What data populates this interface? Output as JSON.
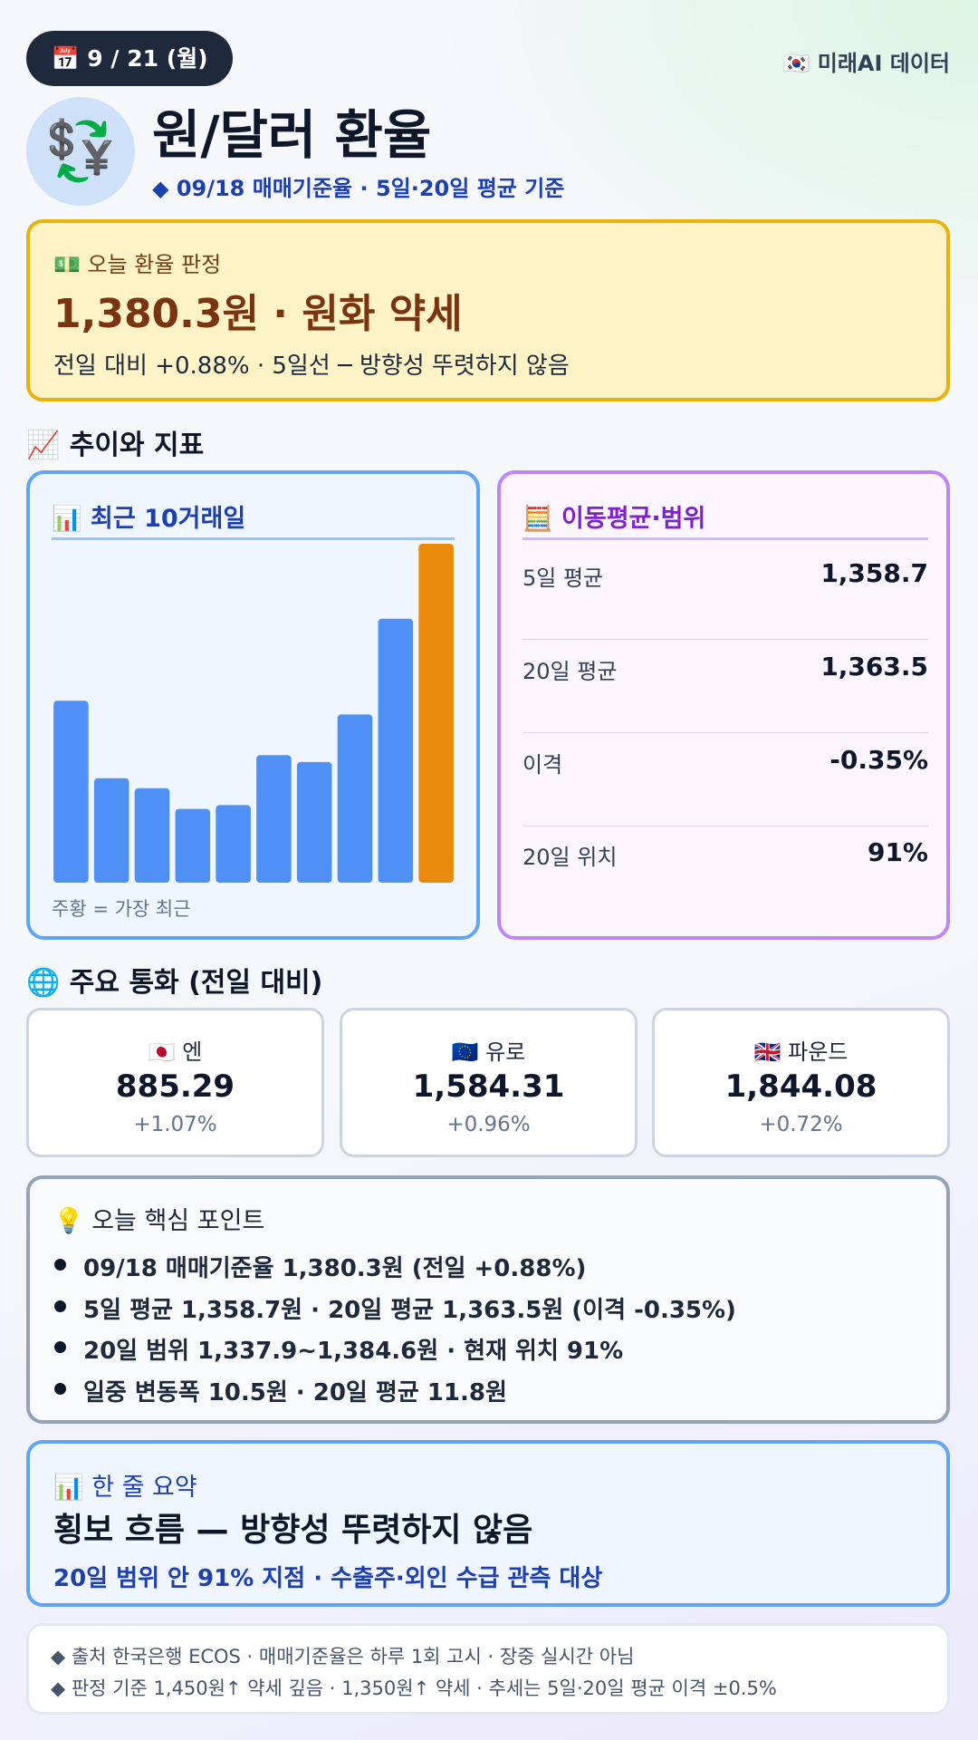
{
  "header": {
    "date": "📅 9 / 21 (월)",
    "source_badge": "🇰🇷 미래AI 데이터",
    "icon": "💱",
    "title": "원/달러 환율",
    "subtitle": "◆ 09/18 매매기준율 · 5일·20일 평균 기준"
  },
  "verdict": {
    "label": "💵 오늘 환율 판정",
    "headline": "1,380.3원 · 원화 약세",
    "detail": "전일 대비 +0.88% · 5일선 ─ 방향성 뚜렷하지 않음"
  },
  "trend_section": "📈 추이와 지표",
  "chart_data": {
    "type": "bar",
    "title": "📊 최근 10거래일",
    "note": "주황 = 가장 최근",
    "values": [
      1355.2,
      1342.8,
      1341.2,
      1337.9,
      1338.5,
      1346.5,
      1345.4,
      1353.0,
      1368.3,
      1380.3
    ],
    "colors": [
      "#4f90f7",
      "#4f90f7",
      "#4f90f7",
      "#4f90f7",
      "#4f90f7",
      "#4f90f7",
      "#4f90f7",
      "#4f90f7",
      "#4f90f7",
      "#ea8a0c"
    ],
    "ylim": [
      1326.1,
      1380.3
    ],
    "grid": false
  },
  "ma_panel": {
    "title": "🧮 이동평균·범위",
    "rows": [
      {
        "label": "5일 평균",
        "value": "1,358.7"
      },
      {
        "label": "20일 평균",
        "value": "1,363.5"
      },
      {
        "label": "이격",
        "value": "-0.35%"
      },
      {
        "label": "20일 위치",
        "value": "91%"
      }
    ]
  },
  "currency_section": "🌐 주요 통화 (전일 대비)",
  "currencies": [
    {
      "name": "🇯🇵 엔",
      "value": "885.29",
      "change": "+1.07%"
    },
    {
      "name": "🇪🇺 유로",
      "value": "1,584.31",
      "change": "+0.96%"
    },
    {
      "name": "🇬🇧 파운드",
      "value": "1,844.08",
      "change": "+0.72%"
    }
  ],
  "points": {
    "title": "💡 오늘 핵심 포인트",
    "items": [
      "09/18 매매기준율 1,380.3원 (전일 +0.88%)",
      "5일 평균 1,358.7원 · 20일 평균 1,363.5원 (이격 -0.35%)",
      "20일 범위 1,337.9~1,384.6원 · 현재 위치 91%",
      "일중 변동폭 10.5원 · 20일 평균 11.8원"
    ]
  },
  "summary": {
    "label": "📊 한 줄 요약",
    "headline": "횡보 흐름 — 방향성 뚜렷하지 않음",
    "detail": "20일 범위 안 91% 지점 · 수출주·외인 수급 관측 대상"
  },
  "footer": [
    "◆ 출처 한국은행 ECOS · 매매기준율은 하루 1회 고시 · 장중 실시간 아님",
    "◆ 판정 기준 1,450원↑ 약세 깊음 · 1,350원↑ 약세 · 추세는 5일·20일 평균 이격 ±0.5%"
  ]
}
